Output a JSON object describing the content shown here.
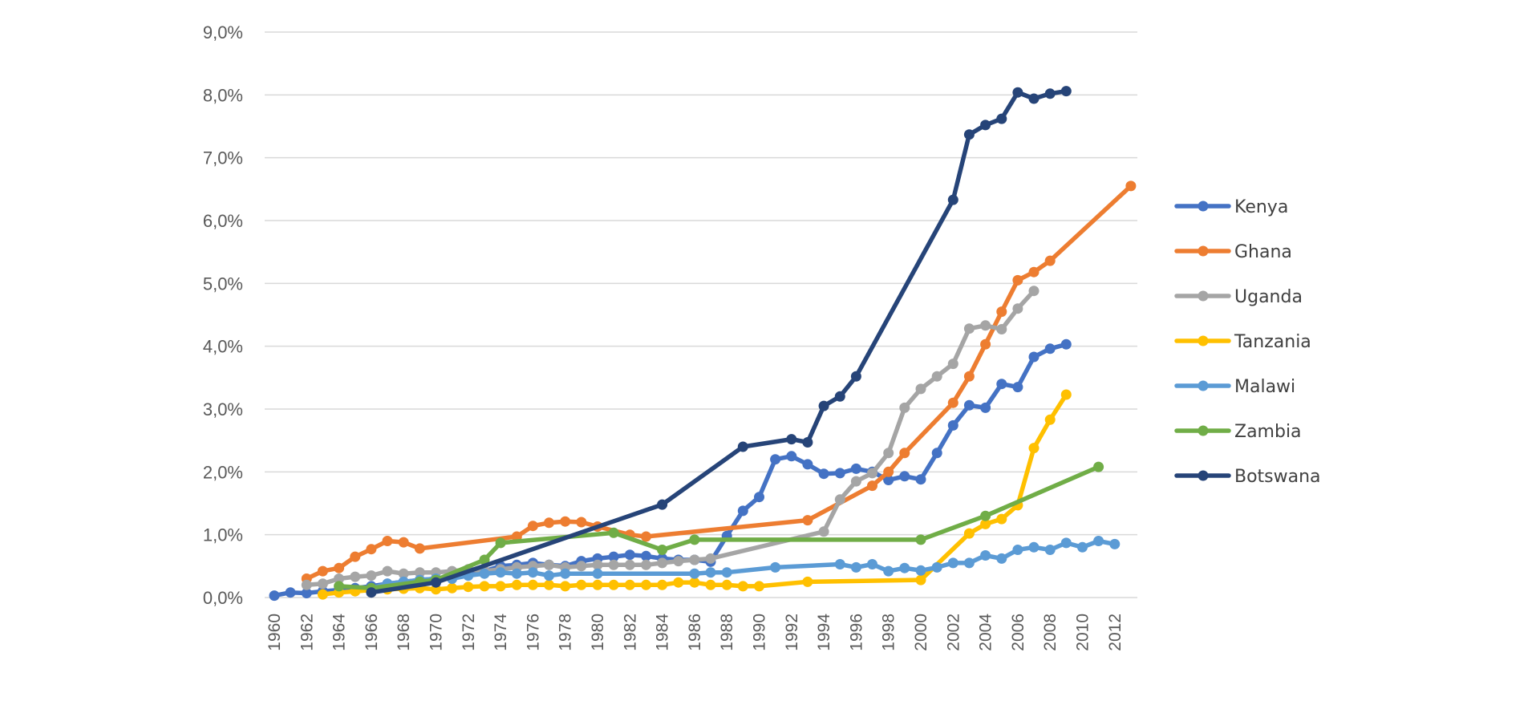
{
  "chart_data": {
    "type": "line",
    "title": "",
    "xlabel": "",
    "ylabel": "",
    "ylim": [
      0,
      9
    ],
    "xlim": [
      1960,
      2013
    ],
    "grid": true,
    "legend_position": "right",
    "y_ticks": [
      "0,0%",
      "1,0%",
      "2,0%",
      "3,0%",
      "4,0%",
      "5,0%",
      "6,0%",
      "7,0%",
      "8,0%",
      "9,0%"
    ],
    "y_tick_values": [
      0,
      1,
      2,
      3,
      4,
      5,
      6,
      7,
      8,
      9
    ],
    "x_ticks": [
      "1960",
      "1962",
      "1964",
      "1966",
      "1968",
      "1970",
      "1972",
      "1974",
      "1976",
      "1978",
      "1980",
      "1982",
      "1984",
      "1986",
      "1988",
      "1990",
      "1992",
      "1994",
      "1996",
      "1998",
      "2000",
      "2002",
      "2004",
      "2006",
      "2008",
      "2010",
      "2012"
    ],
    "series": [
      {
        "name": "Kenya",
        "color": "#4472C4",
        "points": [
          [
            1960,
            0.03
          ],
          [
            1961,
            0.08
          ],
          [
            1962,
            0.07
          ],
          [
            1963,
            0.1
          ],
          [
            1964,
            0.12
          ],
          [
            1965,
            0.15
          ],
          [
            1966,
            0.18
          ],
          [
            1967,
            0.22
          ],
          [
            1968,
            0.25
          ],
          [
            1969,
            0.28
          ],
          [
            1970,
            0.3
          ],
          [
            1971,
            0.33
          ],
          [
            1972,
            0.38
          ],
          [
            1973,
            0.42
          ],
          [
            1974,
            0.5
          ],
          [
            1975,
            0.52
          ],
          [
            1976,
            0.55
          ],
          [
            1977,
            0.52
          ],
          [
            1978,
            0.5
          ],
          [
            1979,
            0.58
          ],
          [
            1980,
            0.62
          ],
          [
            1981,
            0.65
          ],
          [
            1982,
            0.68
          ],
          [
            1983,
            0.66
          ],
          [
            1984,
            0.62
          ],
          [
            1985,
            0.6
          ],
          [
            1986,
            0.6
          ],
          [
            1987,
            0.57
          ],
          [
            1988,
            0.98
          ],
          [
            1989,
            1.38
          ],
          [
            1990,
            1.6
          ],
          [
            1991,
            2.2
          ],
          [
            1992,
            2.25
          ],
          [
            1993,
            2.12
          ],
          [
            1994,
            1.97
          ],
          [
            1995,
            1.98
          ],
          [
            1996,
            2.05
          ],
          [
            1997,
            2.0
          ],
          [
            1998,
            1.87
          ],
          [
            1999,
            1.93
          ],
          [
            2000,
            1.88
          ],
          [
            2001,
            2.3
          ],
          [
            2002,
            2.74
          ],
          [
            2003,
            3.06
          ],
          [
            2004,
            3.02
          ],
          [
            2005,
            3.4
          ],
          [
            2006,
            3.35
          ],
          [
            2007,
            3.83
          ],
          [
            2008,
            3.96
          ],
          [
            2009,
            4.03
          ]
        ]
      },
      {
        "name": "Ghana",
        "color": "#ED7D31",
        "points": [
          [
            1962,
            0.3
          ],
          [
            1963,
            0.42
          ],
          [
            1964,
            0.47
          ],
          [
            1965,
            0.65
          ],
          [
            1966,
            0.77
          ],
          [
            1967,
            0.9
          ],
          [
            1968,
            0.88
          ],
          [
            1969,
            0.78
          ],
          [
            1975,
            0.97
          ],
          [
            1976,
            1.14
          ],
          [
            1977,
            1.19
          ],
          [
            1978,
            1.21
          ],
          [
            1979,
            1.2
          ],
          [
            1980,
            1.13
          ],
          [
            1982,
            1.0
          ],
          [
            1983,
            0.97
          ],
          [
            1993,
            1.23
          ],
          [
            1997,
            1.78
          ],
          [
            1998,
            2.0
          ],
          [
            1999,
            2.3
          ],
          [
            2002,
            3.1
          ],
          [
            2003,
            3.52
          ],
          [
            2004,
            4.03
          ],
          [
            2005,
            4.55
          ],
          [
            2006,
            5.05
          ],
          [
            2007,
            5.18
          ],
          [
            2008,
            5.36
          ],
          [
            2013,
            6.55
          ]
        ]
      },
      {
        "name": "Uganda",
        "color": "#A5A5A5",
        "points": [
          [
            1962,
            0.2
          ],
          [
            1963,
            0.22
          ],
          [
            1964,
            0.3
          ],
          [
            1965,
            0.33
          ],
          [
            1966,
            0.35
          ],
          [
            1967,
            0.42
          ],
          [
            1968,
            0.38
          ],
          [
            1969,
            0.4
          ],
          [
            1970,
            0.4
          ],
          [
            1971,
            0.42
          ],
          [
            1972,
            0.45
          ],
          [
            1973,
            0.42
          ],
          [
            1974,
            0.45
          ],
          [
            1975,
            0.48
          ],
          [
            1976,
            0.5
          ],
          [
            1977,
            0.52
          ],
          [
            1978,
            0.48
          ],
          [
            1979,
            0.5
          ],
          [
            1980,
            0.52
          ],
          [
            1981,
            0.52
          ],
          [
            1982,
            0.52
          ],
          [
            1983,
            0.52
          ],
          [
            1984,
            0.55
          ],
          [
            1985,
            0.58
          ],
          [
            1986,
            0.6
          ],
          [
            1987,
            0.62
          ],
          [
            1994,
            1.05
          ],
          [
            1995,
            1.56
          ],
          [
            1996,
            1.85
          ],
          [
            1997,
            1.98
          ],
          [
            1998,
            2.3
          ],
          [
            1999,
            3.02
          ],
          [
            2000,
            3.32
          ],
          [
            2001,
            3.52
          ],
          [
            2002,
            3.72
          ],
          [
            2003,
            4.28
          ],
          [
            2004,
            4.33
          ],
          [
            2005,
            4.27
          ],
          [
            2006,
            4.6
          ],
          [
            2007,
            4.88
          ]
        ]
      },
      {
        "name": "Tanzania",
        "color": "#FFC000",
        "points": [
          [
            1963,
            0.05
          ],
          [
            1964,
            0.08
          ],
          [
            1965,
            0.1
          ],
          [
            1966,
            0.12
          ],
          [
            1967,
            0.13
          ],
          [
            1968,
            0.14
          ],
          [
            1969,
            0.15
          ],
          [
            1970,
            0.13
          ],
          [
            1971,
            0.15
          ],
          [
            1972,
            0.17
          ],
          [
            1973,
            0.18
          ],
          [
            1974,
            0.18
          ],
          [
            1975,
            0.2
          ],
          [
            1976,
            0.2
          ],
          [
            1977,
            0.2
          ],
          [
            1978,
            0.18
          ],
          [
            1979,
            0.2
          ],
          [
            1980,
            0.2
          ],
          [
            1981,
            0.2
          ],
          [
            1982,
            0.2
          ],
          [
            1983,
            0.2
          ],
          [
            1984,
            0.2
          ],
          [
            1985,
            0.24
          ],
          [
            1986,
            0.24
          ],
          [
            1987,
            0.2
          ],
          [
            1988,
            0.2
          ],
          [
            1989,
            0.18
          ],
          [
            1990,
            0.18
          ],
          [
            1993,
            0.25
          ],
          [
            2000,
            0.28
          ],
          [
            2003,
            1.02
          ],
          [
            2004,
            1.17
          ],
          [
            2005,
            1.25
          ],
          [
            2006,
            1.47
          ],
          [
            2007,
            2.38
          ],
          [
            2008,
            2.83
          ],
          [
            2009,
            3.23
          ]
        ]
      },
      {
        "name": "Malawi",
        "color": "#5B9BD5",
        "points": [
          [
            1966,
            0.15
          ],
          [
            1967,
            0.22
          ],
          [
            1968,
            0.25
          ],
          [
            1969,
            0.28
          ],
          [
            1970,
            0.3
          ],
          [
            1971,
            0.3
          ],
          [
            1972,
            0.35
          ],
          [
            1973,
            0.38
          ],
          [
            1974,
            0.4
          ],
          [
            1975,
            0.38
          ],
          [
            1976,
            0.4
          ],
          [
            1977,
            0.35
          ],
          [
            1978,
            0.38
          ],
          [
            1980,
            0.38
          ],
          [
            1986,
            0.38
          ],
          [
            1987,
            0.4
          ],
          [
            1988,
            0.4
          ],
          [
            1991,
            0.48
          ],
          [
            1995,
            0.53
          ],
          [
            1996,
            0.48
          ],
          [
            1997,
            0.53
          ],
          [
            1998,
            0.42
          ],
          [
            1999,
            0.47
          ],
          [
            2000,
            0.43
          ],
          [
            2001,
            0.48
          ],
          [
            2002,
            0.55
          ],
          [
            2003,
            0.55
          ],
          [
            2004,
            0.67
          ],
          [
            2005,
            0.62
          ],
          [
            2006,
            0.76
          ],
          [
            2007,
            0.8
          ],
          [
            2008,
            0.76
          ],
          [
            2009,
            0.87
          ],
          [
            2010,
            0.8
          ],
          [
            2011,
            0.9
          ],
          [
            2012,
            0.85
          ]
        ]
      },
      {
        "name": "Zambia",
        "color": "#70AD47",
        "points": [
          [
            1964,
            0.18
          ],
          [
            1966,
            0.15
          ],
          [
            1969,
            0.25
          ],
          [
            1970,
            0.28
          ],
          [
            1973,
            0.6
          ],
          [
            1974,
            0.87
          ],
          [
            1981,
            1.03
          ],
          [
            1984,
            0.76
          ],
          [
            1986,
            0.92
          ],
          [
            2000,
            0.92
          ],
          [
            2004,
            1.3
          ],
          [
            2011,
            2.08
          ]
        ]
      },
      {
        "name": "Botswana",
        "color": "#264478",
        "points": [
          [
            1966,
            0.08
          ],
          [
            1970,
            0.24
          ],
          [
            1984,
            1.48
          ],
          [
            1989,
            2.4
          ],
          [
            1992,
            2.52
          ],
          [
            1993,
            2.47
          ],
          [
            1994,
            3.05
          ],
          [
            1995,
            3.2
          ],
          [
            1996,
            3.52
          ],
          [
            2002,
            6.33
          ],
          [
            2003,
            7.37
          ],
          [
            2004,
            7.52
          ],
          [
            2005,
            7.62
          ],
          [
            2006,
            8.04
          ],
          [
            2007,
            7.94
          ],
          [
            2008,
            8.02
          ],
          [
            2009,
            8.06
          ]
        ]
      }
    ]
  }
}
